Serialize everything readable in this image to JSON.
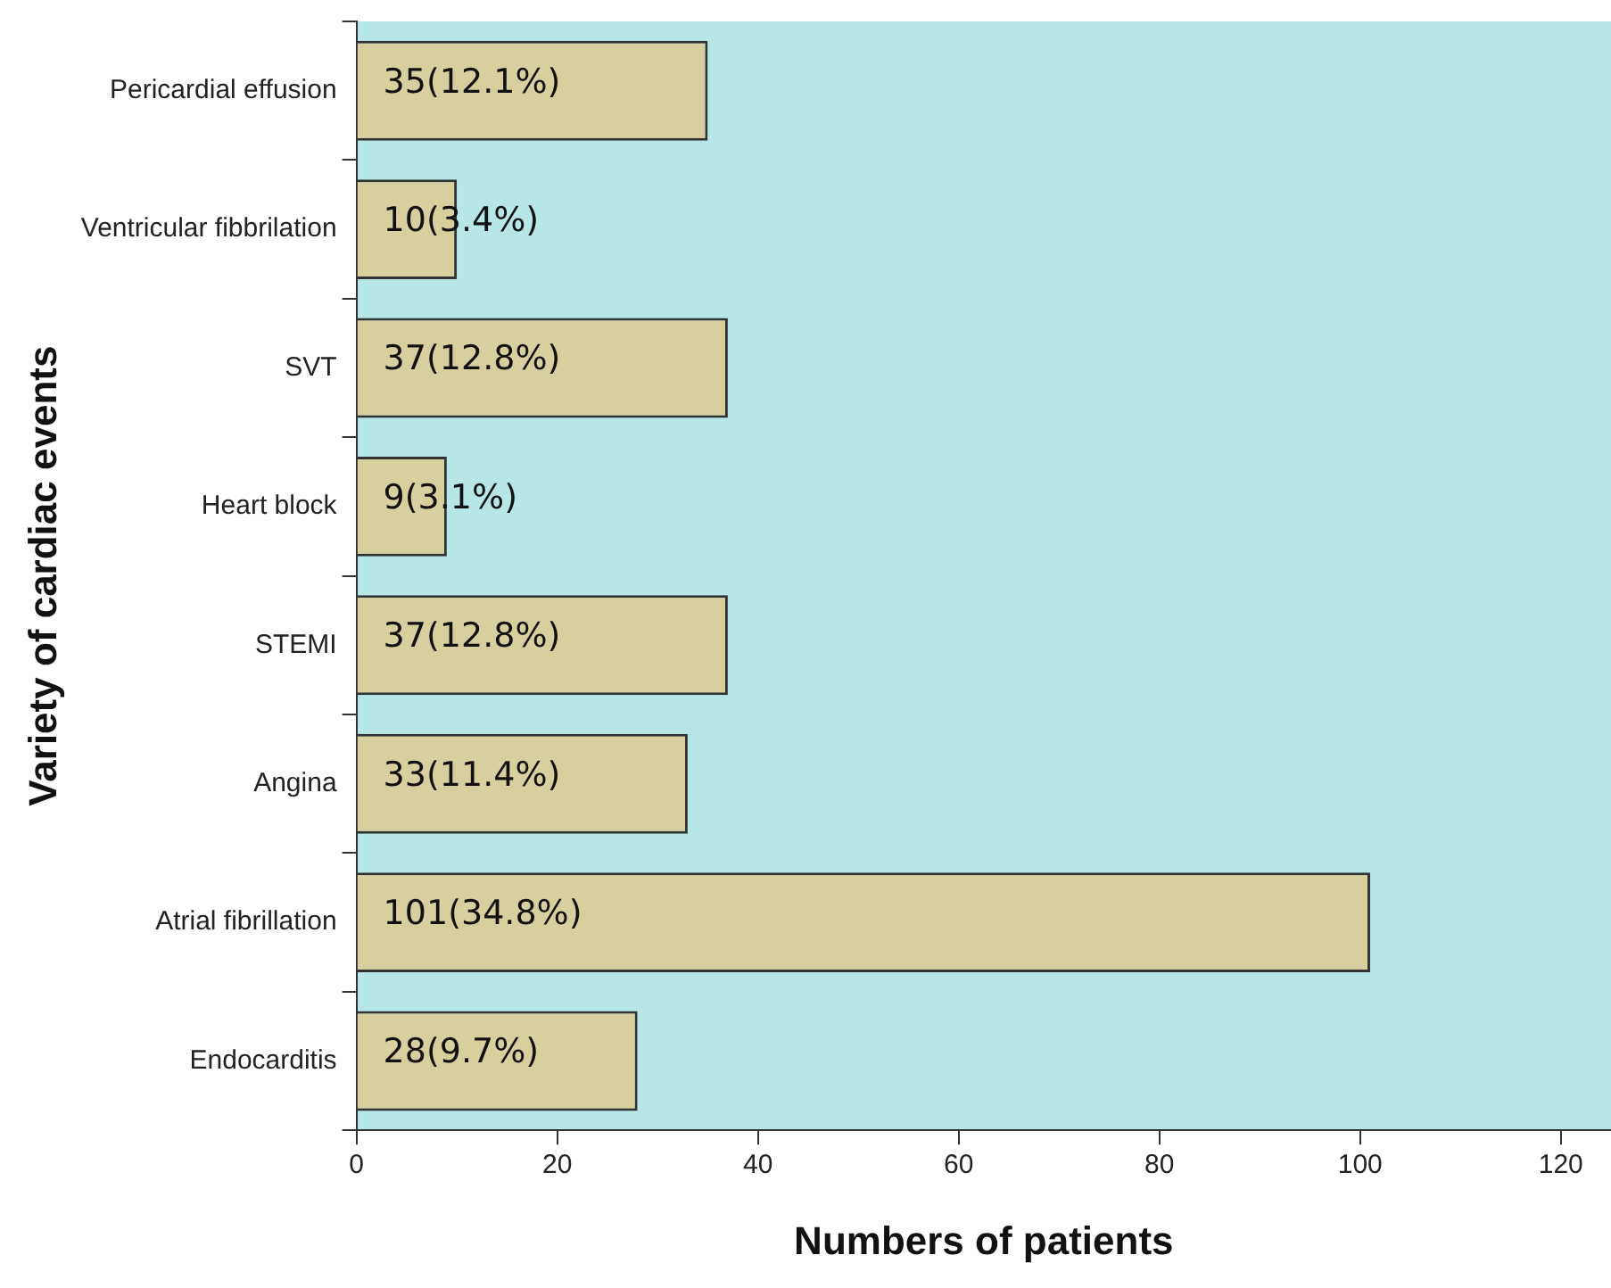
{
  "chart_data": {
    "type": "bar",
    "orientation": "horizontal",
    "xlabel": "Numbers of patients",
    "ylabel": "Variety of cardiac events",
    "categories": [
      "Pericardial effusion",
      "Ventricular fibbrilation",
      "SVT",
      "Heart block",
      "STEMI",
      "Angina",
      "Atrial fibrillation",
      "Endocarditis"
    ],
    "values": [
      35,
      10,
      37,
      9,
      37,
      33,
      101,
      28
    ],
    "value_labels": [
      "35(12.1%)",
      "10(3.4%)",
      "37(12.8%)",
      "9(3.1%)",
      "37(12.8%)",
      "33(11.4%)",
      "101(34.8%)",
      "28(9.7%)"
    ],
    "color": "#d8cf9f",
    "xlim": [
      0,
      125
    ],
    "xticks": [
      0,
      20,
      40,
      60,
      80,
      100,
      120
    ],
    "grid": false,
    "legend": false
  }
}
